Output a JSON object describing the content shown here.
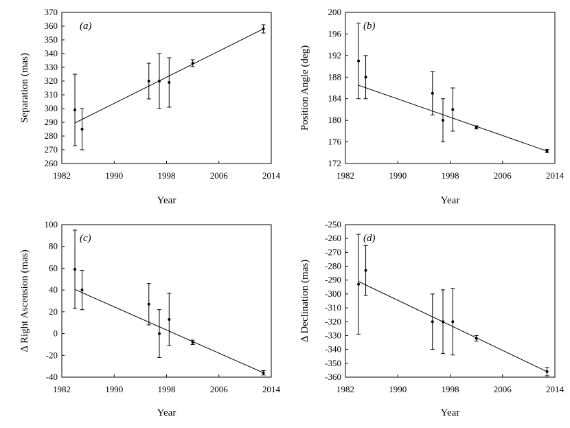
{
  "chart_data": [
    {
      "type": "scatter",
      "panel_label": "(a)",
      "xlabel": "Year",
      "ylabel": "Separation (mas)",
      "xlim": [
        1982,
        2014
      ],
      "ylim": [
        260,
        370
      ],
      "x_ticks": [
        1982,
        1990,
        1998,
        2006,
        2014
      ],
      "y_ticks": [
        260,
        270,
        280,
        290,
        300,
        310,
        320,
        330,
        340,
        350,
        360,
        370
      ],
      "points": [
        {
          "x": 1984.0,
          "y": 299,
          "err": 26
        },
        {
          "x": 1985.1,
          "y": 285,
          "err": 15
        },
        {
          "x": 1995.3,
          "y": 320,
          "err": 13
        },
        {
          "x": 1996.9,
          "y": 320,
          "err": 20
        },
        {
          "x": 1998.4,
          "y": 319,
          "err": 18
        },
        {
          "x": 2002.0,
          "y": 333,
          "err": 2.5
        },
        {
          "x": 2012.8,
          "y": 358,
          "err": 3
        }
      ],
      "fit": {
        "x": [
          1984.0,
          2012.8
        ],
        "y": [
          289.5,
          358
        ]
      }
    },
    {
      "type": "scatter",
      "panel_label": "(b)",
      "xlabel": "Year",
      "ylabel": "Position Angle (deg)",
      "xlim": [
        1982,
        2014
      ],
      "ylim": [
        172,
        200
      ],
      "x_ticks": [
        1982,
        1990,
        1998,
        2006,
        2014
      ],
      "y_ticks": [
        172,
        176,
        180,
        184,
        188,
        192,
        196,
        200
      ],
      "points": [
        {
          "x": 1984.0,
          "y": 191,
          "err": 7
        },
        {
          "x": 1985.1,
          "y": 188,
          "err": 4
        },
        {
          "x": 1995.3,
          "y": 185,
          "err": 4
        },
        {
          "x": 1996.9,
          "y": 180,
          "err": 4
        },
        {
          "x": 1998.4,
          "y": 182,
          "err": 4
        },
        {
          "x": 2002.0,
          "y": 178.7,
          "err": 0.3
        },
        {
          "x": 2012.8,
          "y": 174.3,
          "err": 0.3
        }
      ],
      "fit": {
        "x": [
          1984.0,
          2012.8
        ],
        "y": [
          186.5,
          174.3
        ]
      }
    },
    {
      "type": "scatter",
      "panel_label": "(c)",
      "xlabel": "Year",
      "ylabel": "Δ Right Ascension (mas)",
      "xlim": [
        1982,
        2014
      ],
      "ylim": [
        -40,
        100
      ],
      "x_ticks": [
        1982,
        1990,
        1998,
        2006,
        2014
      ],
      "y_ticks": [
        -40,
        -20,
        0,
        20,
        40,
        60,
        80,
        100
      ],
      "points": [
        {
          "x": 1984.0,
          "y": 59,
          "err": 36
        },
        {
          "x": 1985.1,
          "y": 40,
          "err": 18
        },
        {
          "x": 1995.3,
          "y": 27,
          "err": 19
        },
        {
          "x": 1996.9,
          "y": 0,
          "err": 22
        },
        {
          "x": 1998.4,
          "y": 13,
          "err": 24
        },
        {
          "x": 2002.0,
          "y": -8,
          "err": 2
        },
        {
          "x": 2012.8,
          "y": -36,
          "err": 2
        }
      ],
      "fit": {
        "x": [
          1984.0,
          2012.8
        ],
        "y": [
          40.5,
          -36
        ]
      }
    },
    {
      "type": "scatter",
      "panel_label": "(d)",
      "xlabel": "Year",
      "ylabel": "Δ Declination (mas)",
      "xlim": [
        1982,
        2014
      ],
      "ylim": [
        -360,
        -250
      ],
      "x_ticks": [
        1982,
        1990,
        1998,
        2006,
        2014
      ],
      "y_ticks": [
        -360,
        -350,
        -340,
        -330,
        -320,
        -310,
        -300,
        -290,
        -280,
        -270,
        -260,
        -250
      ],
      "points": [
        {
          "x": 1984.0,
          "y": -293,
          "err": 36
        },
        {
          "x": 1985.1,
          "y": -283,
          "err": 18
        },
        {
          "x": 1995.3,
          "y": -320,
          "err": 20
        },
        {
          "x": 1996.9,
          "y": -320,
          "err": 23
        },
        {
          "x": 1998.4,
          "y": -320,
          "err": 24
        },
        {
          "x": 2002.0,
          "y": -332,
          "err": 2
        },
        {
          "x": 2012.8,
          "y": -356,
          "err": 3
        }
      ],
      "fit": {
        "x": [
          1984.0,
          2012.8
        ],
        "y": [
          -291,
          -356
        ]
      }
    }
  ]
}
